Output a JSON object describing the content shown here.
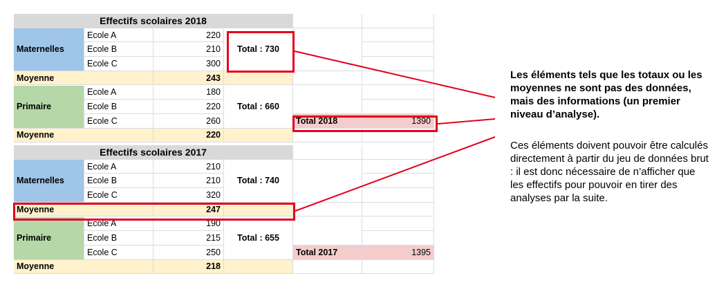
{
  "table2018": {
    "title": "Effectifs scolaires 2018",
    "maternelles": {
      "label": "Maternelles",
      "schools": [
        "Ecole A",
        "Ecole B",
        "Ecole C"
      ],
      "values": [
        "220",
        "210",
        "300"
      ],
      "total": "Total : 730"
    },
    "moyenne1": {
      "label": "Moyenne",
      "value": "243"
    },
    "primaire": {
      "label": "Primaire",
      "schools": [
        "Ecole A",
        "Ecole B",
        "Ecole C"
      ],
      "values": [
        "180",
        "220",
        "260"
      ],
      "total": "Total : 660"
    },
    "moyenne2": {
      "label": "Moyenne",
      "value": "220"
    },
    "year_total": {
      "label": "Total 2018",
      "value": "1390"
    }
  },
  "table2017": {
    "title": "Effectifs scolaires 2017",
    "maternelles": {
      "label": "Maternelles",
      "schools": [
        "Ecole A",
        "Ecole B",
        "Ecole C"
      ],
      "values": [
        "210",
        "210",
        "320"
      ],
      "total": "Total : 740"
    },
    "moyenne1": {
      "label": "Moyenne",
      "value": "247"
    },
    "primaire": {
      "label": "Primaire",
      "schools": [
        "Ecole A",
        "Ecole B",
        "Ecole C"
      ],
      "values": [
        "190",
        "215",
        "250"
      ],
      "total": "Total : 655"
    },
    "moyenne2": {
      "label": "Moyenne",
      "value": "218"
    },
    "year_total": {
      "label": "Total 2017",
      "value": "1395"
    }
  },
  "annotation": {
    "headline": "Les éléments tels que les totaux ou les moyennes ne sont pas des données, mais des informations (un premier niveau d’analyse).",
    "body": "Ces éléments doivent pouvoir être calculés directement à partir du jeu de données brut : il est donc nécessaire de n’afficher que les effectifs pour pouvoir en tirer des analyses par la  suite."
  },
  "colors": {
    "header": "#d9d9d9",
    "maternelles": "#9fc5e8",
    "primaire": "#b6d7a8",
    "moyenne": "#fff2cc",
    "year_total": "#f4cccc",
    "highlight": "#e3001b",
    "gridline": "#dadce0"
  }
}
